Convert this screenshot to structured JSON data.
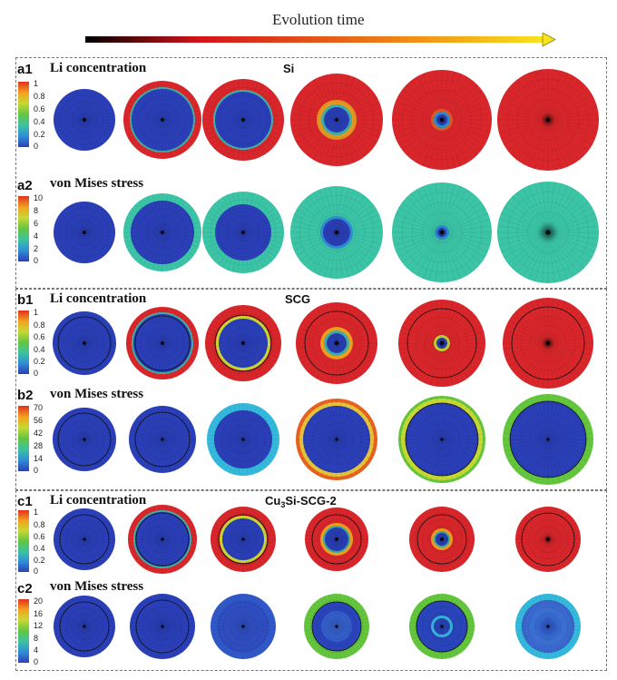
{
  "header": {
    "title": "Evolution time",
    "arrow_colors": [
      "#000000",
      "#d4131b",
      "#f08a16",
      "#f7e41d"
    ]
  },
  "colors": {
    "blue": "#2a3fb8",
    "red": "#d8262b",
    "teal": "#3bc4a6",
    "green": "#63c63d",
    "cyan": "#34b9dd",
    "orange": "#e9611f",
    "midblue": "#3058c8"
  },
  "colorbar_colors": [
    "#2c3fb5",
    "#2f8fd6",
    "#3cc2a3",
    "#63c640",
    "#c6d834",
    "#f4a21e",
    "#e0321f"
  ],
  "panels": [
    {
      "id": "a",
      "material": "Si",
      "rows": [
        {
          "label": "a1",
          "title": "Li concentration",
          "ticks": [
            "1",
            "0.8",
            "0.6",
            "0.4",
            "0.2",
            "0"
          ]
        },
        {
          "label": "a2",
          "title": "von Mises stress",
          "ticks": [
            "10",
            "8",
            "6",
            "4",
            "2",
            "0"
          ]
        }
      ]
    },
    {
      "id": "b",
      "material": "SCG",
      "rows": [
        {
          "label": "b1",
          "title": "Li concentration",
          "ticks": [
            "1",
            "0.8",
            "0.6",
            "0.4",
            "0.2",
            "0"
          ]
        },
        {
          "label": "b2",
          "title": "von Mises stress",
          "ticks": [
            "70",
            "56",
            "42",
            "28",
            "14",
            "0"
          ]
        }
      ]
    },
    {
      "id": "c",
      "material_prefix": "Cu",
      "material_sub": "3",
      "material_suffix": "Si-SCG-2",
      "rows": [
        {
          "label": "c1",
          "title": "Li concentration",
          "ticks": [
            "1",
            "0.8",
            "0.6",
            "0.4",
            "0.2",
            "0"
          ]
        },
        {
          "label": "c2",
          "title": "von Mises stress",
          "ticks": [
            "20",
            "16",
            "12",
            "8",
            "4",
            "0"
          ]
        }
      ]
    }
  ]
}
